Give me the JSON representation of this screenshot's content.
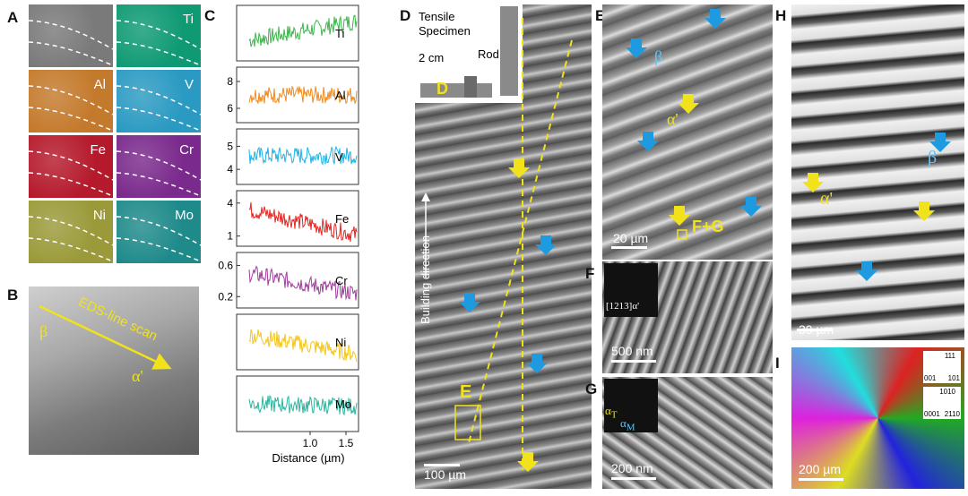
{
  "panels": {
    "A": {
      "label": "A",
      "tiles": [
        {
          "element": "",
          "color": "#7a7a7a"
        },
        {
          "element": "Ti",
          "color": "#0f9a74"
        },
        {
          "element": "Al",
          "color": "#c47a2c"
        },
        {
          "element": "V",
          "color": "#2b9ac2"
        },
        {
          "element": "Fe",
          "color": "#b51a2c"
        },
        {
          "element": "Cr",
          "color": "#7a2a8c"
        },
        {
          "element": "Ni",
          "color": "#9a9a3a"
        },
        {
          "element": "Mo",
          "color": "#1f8a8a"
        }
      ]
    },
    "B": {
      "label": "B",
      "scan_label": "EDS-line scan",
      "beta": "β",
      "alpha_prime": "α'"
    },
    "C": {
      "label": "C",
      "xlabel": "Distance (µm)"
    },
    "D": {
      "label": "D",
      "inset_tensile": "Tensile",
      "inset_specimen": "Specimen",
      "inset_rod": "Rod",
      "inset_scale": "2 cm",
      "inset_marker": "D",
      "axis_label": "Building direction",
      "box_label": "E",
      "scale": "100 µm"
    },
    "E": {
      "label": "E",
      "beta": "β",
      "alpha_prime": "α'",
      "box_label": "F+G",
      "scale": "20 µm"
    },
    "F": {
      "label": "F",
      "diffraction": "[1213]α'",
      "scale": "500 nm"
    },
    "G": {
      "label": "G",
      "alpha_t": "α",
      "alpha_t_sub": "T",
      "alpha_m": "α",
      "alpha_m_sub": "M",
      "scale": "200 nm"
    },
    "H": {
      "label": "H",
      "beta": "β",
      "alpha_prime": "α'",
      "scale": "30 µm"
    },
    "I": {
      "label": "I",
      "key1": [
        "111",
        "001",
        "101"
      ],
      "key2": [
        "1010",
        "0001",
        "2110"
      ],
      "scale": "200 µm"
    }
  },
  "chart_data": {
    "type": "line",
    "xlabel": "Distance (µm)",
    "x_ticks": [
      1.0,
      1.5
    ],
    "xlim": [
      0,
      1.65
    ],
    "series": [
      {
        "name": "Ti",
        "color": "#3cb54a",
        "y_ticks": [],
        "trend": [
          0.35,
          0.75
        ]
      },
      {
        "name": "Al",
        "color": "#f08a1d",
        "y_ticks": [
          6,
          8
        ],
        "ylim": [
          5.2,
          8.8
        ],
        "trend": [
          7.0,
          7.0
        ]
      },
      {
        "name": "V",
        "color": "#1eb3e6",
        "y_ticks": [
          4,
          5
        ],
        "ylim": [
          3.5,
          5.6
        ],
        "trend": [
          4.6,
          4.6
        ]
      },
      {
        "name": "Fe",
        "color": "#e52421",
        "y_ticks": [
          1,
          4
        ],
        "ylim": [
          0.4,
          4.8
        ],
        "trend": [
          3.4,
          1.1
        ]
      },
      {
        "name": "Cr",
        "color": "#9e3f9c",
        "y_ticks": [
          0.2,
          0.6
        ],
        "ylim": [
          0.1,
          0.72
        ],
        "trend": [
          0.5,
          0.24
        ]
      },
      {
        "name": "Ni",
        "color": "#f5c518",
        "y_ticks": [],
        "trend": [
          0.65,
          0.25
        ]
      },
      {
        "name": "Mo",
        "color": "#2bb59e",
        "y_ticks": [],
        "trend": [
          0.5,
          0.45
        ]
      }
    ]
  }
}
